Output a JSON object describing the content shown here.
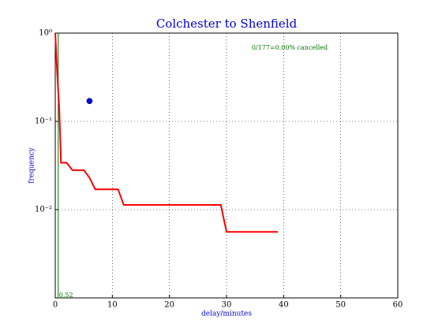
{
  "chart_data": {
    "type": "line",
    "title": "Colchester to Shenfield",
    "xlabel": "delay/minutes",
    "ylabel": "frequency",
    "annotation": "0/177=0.00% cancelled",
    "xlim": [
      0,
      60
    ],
    "xticks": [
      0,
      10,
      20,
      30,
      40,
      50,
      60
    ],
    "ylim": [
      0.001,
      1
    ],
    "ylog": true,
    "yticks": [
      {
        "value": 1,
        "label": "10⁰"
      },
      {
        "value": 0.1,
        "label": "10⁻¹"
      },
      {
        "value": 0.01,
        "label": "10⁻²"
      }
    ],
    "grid": true,
    "series": [
      {
        "type": "line",
        "color": "#ff0000",
        "x": [
          0,
          0.3,
          0.5,
          0.7,
          0.9,
          1,
          2,
          3,
          5,
          6,
          7,
          11,
          12,
          29,
          30,
          39
        ],
        "values": [
          1,
          0.4,
          0.23,
          0.14,
          0.058,
          0.034,
          0.034,
          0.028,
          0.028,
          0.023,
          0.017,
          0.017,
          0.0113,
          0.0113,
          0.0056,
          0.0056
        ]
      },
      {
        "type": "scatter",
        "color": "#0000ff",
        "x": [
          6
        ],
        "values": [
          0.17
        ]
      }
    ],
    "vline": {
      "x": 0.52,
      "color": "#007700"
    }
  }
}
